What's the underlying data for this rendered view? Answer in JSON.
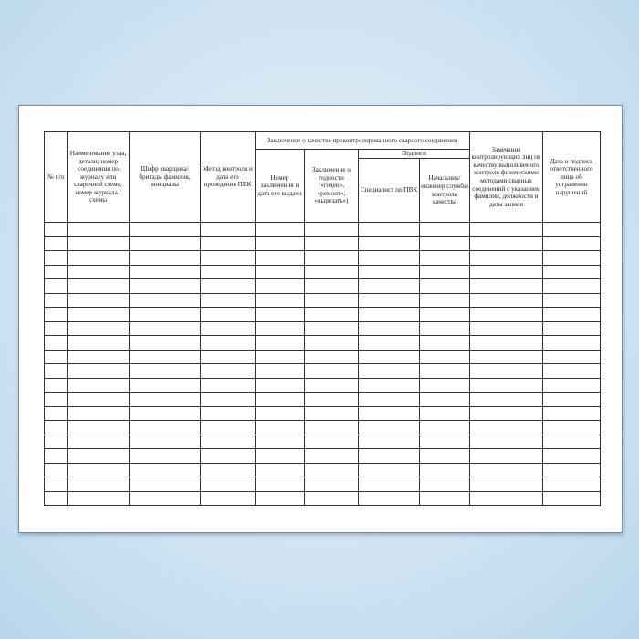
{
  "headers": {
    "num": "№ п/п",
    "node": "Наименование узла, детали; номер соединения по журналу или сварочной схеме; номер журнала /схемы",
    "welder": "Шифр сварщика/бригады фамилия, инициалы",
    "method": "Метод контроля и дата его проведения ПВК",
    "conclusion_group": "Заключение о качестве проконтролированного сварного соединения",
    "conclusion_number": "Номер заключения и дата его выдачи",
    "fitness": "Заключение о годности («годен», «ремонт», «вырезать»)",
    "signatures": "Подписи",
    "specialist": "Специалист по ПВК",
    "chief": "Начальник/ инженер службы контроля качества",
    "remarks": "Замечания контролирующих лиц по качеству выполняемого контроля физическими методами сварных соединений с указанием фамилии, должности и даты записи",
    "date_sign": "Дата и подпись ответственного лица об устранении нарушений"
  },
  "empty_rows": 20
}
